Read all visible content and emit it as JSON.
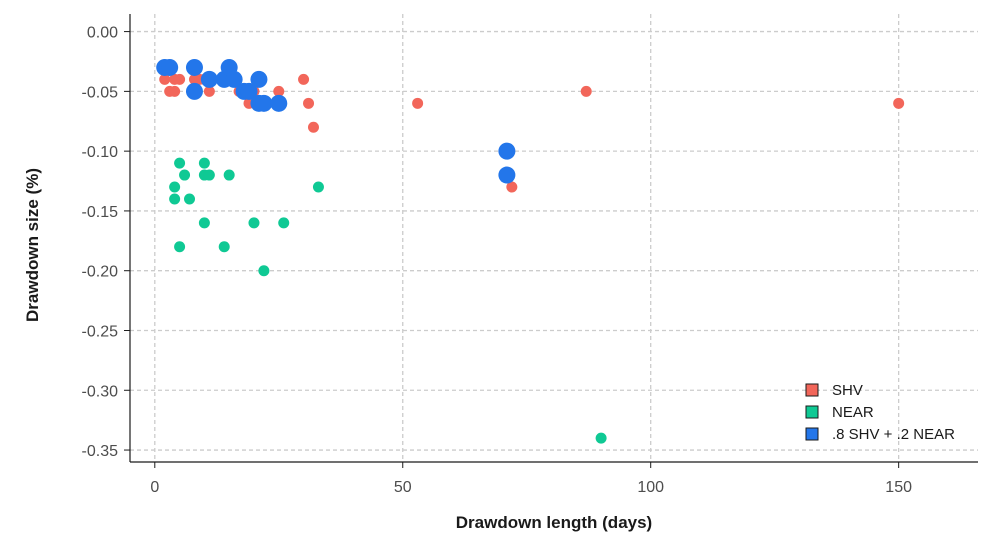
{
  "chart_data": {
    "type": "scatter",
    "xlabel": "Drawdown length (days)",
    "ylabel": "Drawdown size (%)",
    "xlim": [
      -5,
      166
    ],
    "ylim": [
      -0.36,
      0.003
    ],
    "x_ticks": [
      0,
      50,
      100,
      150
    ],
    "x_tick_labels": [
      "0",
      "50",
      "100",
      "150"
    ],
    "y_ticks": [
      0.0,
      -0.05,
      -0.1,
      -0.15,
      -0.2,
      -0.25,
      -0.3,
      -0.35
    ],
    "y_tick_labels": [
      "0.00",
      "-0.05",
      "-0.10",
      "-0.15",
      "-0.20",
      "-0.25",
      "-0.30",
      "-0.35"
    ],
    "grid": true,
    "legend_position": "bottom-right",
    "series": [
      {
        "name": "SHV",
        "color": "#f2665a",
        "marker_size": "small",
        "points": [
          [
            2,
            -0.04
          ],
          [
            3,
            -0.05
          ],
          [
            4,
            -0.04
          ],
          [
            4,
            -0.05
          ],
          [
            5,
            -0.04
          ],
          [
            8,
            -0.04
          ],
          [
            9,
            -0.04
          ],
          [
            10,
            -0.04
          ],
          [
            11,
            -0.05
          ],
          [
            14,
            -0.04
          ],
          [
            15,
            -0.04
          ],
          [
            17,
            -0.05
          ],
          [
            18,
            -0.05
          ],
          [
            19,
            -0.06
          ],
          [
            20,
            -0.05
          ],
          [
            22,
            -0.06
          ],
          [
            25,
            -0.05
          ],
          [
            30,
            -0.04
          ],
          [
            31,
            -0.06
          ],
          [
            32,
            -0.08
          ],
          [
            53,
            -0.06
          ],
          [
            72,
            -0.13
          ],
          [
            87,
            -0.05
          ],
          [
            150,
            -0.06
          ]
        ]
      },
      {
        "name": "NEAR",
        "color": "#0fc994",
        "marker_size": "small",
        "points": [
          [
            4,
            -0.13
          ],
          [
            4,
            -0.14
          ],
          [
            5,
            -0.11
          ],
          [
            5,
            -0.18
          ],
          [
            6,
            -0.12
          ],
          [
            7,
            -0.14
          ],
          [
            10,
            -0.11
          ],
          [
            10,
            -0.12
          ],
          [
            10,
            -0.16
          ],
          [
            11,
            -0.12
          ],
          [
            14,
            -0.18
          ],
          [
            15,
            -0.12
          ],
          [
            20,
            -0.16
          ],
          [
            22,
            -0.2
          ],
          [
            26,
            -0.16
          ],
          [
            33,
            -0.13
          ],
          [
            90,
            -0.34
          ]
        ]
      },
      {
        "name": ".8 SHV + .2 NEAR",
        "color": "#2376ea",
        "marker_size": "large",
        "points": [
          [
            2,
            -0.03
          ],
          [
            3,
            -0.03
          ],
          [
            8,
            -0.03
          ],
          [
            8,
            -0.05
          ],
          [
            11,
            -0.04
          ],
          [
            14,
            -0.04
          ],
          [
            15,
            -0.03
          ],
          [
            16,
            -0.04
          ],
          [
            18,
            -0.05
          ],
          [
            19,
            -0.05
          ],
          [
            21,
            -0.04
          ],
          [
            21,
            -0.06
          ],
          [
            22,
            -0.06
          ],
          [
            25,
            -0.06
          ],
          [
            71,
            -0.1
          ],
          [
            71,
            -0.12
          ]
        ]
      }
    ]
  }
}
